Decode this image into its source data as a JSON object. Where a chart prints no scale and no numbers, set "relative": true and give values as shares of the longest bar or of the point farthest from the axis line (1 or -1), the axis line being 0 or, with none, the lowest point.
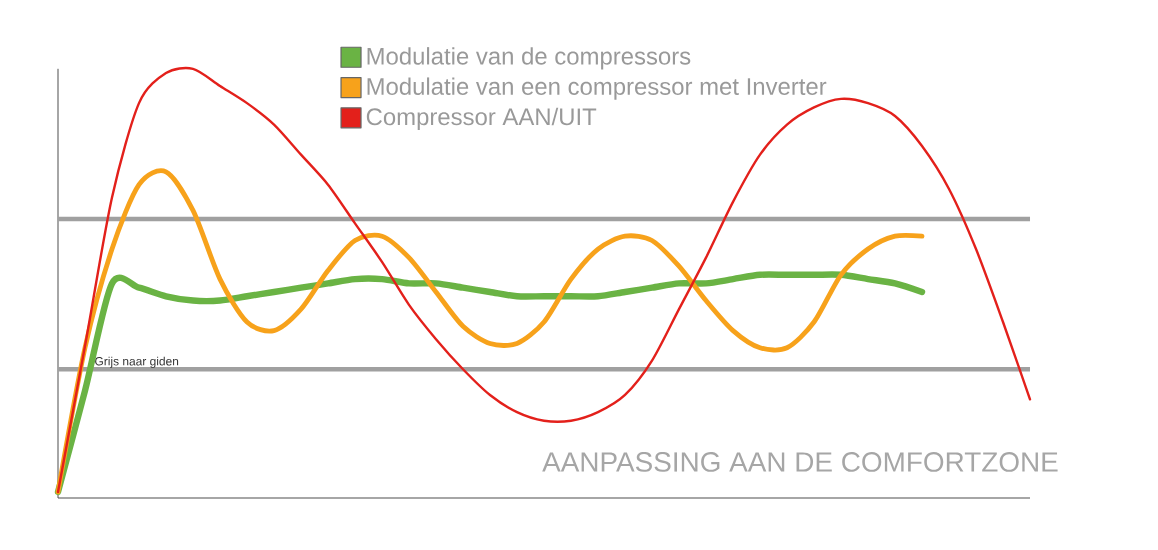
{
  "chart_data": {
    "type": "line",
    "relative": true,
    "legend": "top",
    "categories": [
      null,
      null,
      null,
      null,
      null,
      null,
      null,
      null,
      null,
      null,
      null,
      null,
      null,
      null,
      null,
      null,
      null,
      null,
      null,
      null,
      null,
      null,
      null,
      null,
      null,
      null,
      null,
      null,
      null,
      null,
      null,
      null,
      null,
      null,
      null,
      null,
      null
    ],
    "series": [
      {
        "name": "Modulatie van de compressors",
        "color": "#6ab344",
        "values": [
          0.014,
          0.25,
          0.5,
          0.49,
          0.47,
          0.46,
          0.46,
          0.47,
          0.48,
          0.49,
          0.5,
          0.51,
          0.51,
          0.5,
          0.5,
          0.49,
          0.48,
          0.47,
          0.47,
          0.47,
          0.47,
          0.48,
          0.49,
          0.5,
          0.5,
          0.51,
          0.52,
          0.52,
          0.52,
          0.52,
          0.51,
          0.5,
          0.48,
          null,
          null,
          null,
          null
        ]
      },
      {
        "name": "Modulatie van een compressor met Inverter",
        "color": "#f7a21b",
        "values": [
          0.014,
          0.35,
          0.58,
          0.73,
          0.76,
          0.67,
          0.51,
          0.41,
          0.39,
          0.44,
          0.53,
          0.6,
          0.61,
          0.56,
          0.48,
          0.4,
          0.36,
          0.36,
          0.41,
          0.51,
          0.58,
          0.61,
          0.6,
          0.54,
          0.46,
          0.39,
          0.35,
          0.35,
          0.41,
          0.52,
          0.58,
          0.61,
          0.61,
          null,
          null,
          null,
          null
        ]
      },
      {
        "name": "Compressor AAN/UIT",
        "color": "#e3201b",
        "values": [
          0.014,
          0.354,
          0.7,
          0.92,
          0.99,
          1.0,
          0.96,
          0.92,
          0.87,
          0.8,
          0.73,
          0.64,
          0.55,
          0.45,
          0.37,
          0.3,
          0.24,
          0.2,
          0.18,
          0.18,
          0.2,
          0.24,
          0.32,
          0.44,
          0.56,
          0.69,
          0.8,
          0.87,
          0.91,
          0.93,
          0.92,
          0.89,
          0.82,
          0.72,
          0.58,
          0.41,
          0.23
        ]
      }
    ],
    "ref_lines": [
      {
        "axis": "y",
        "value": 0.65,
        "label": null,
        "color": "#a0a0a0"
      },
      {
        "axis": "y",
        "value": 0.3,
        "label": "Grijs naar giden",
        "color": "#a0a0a0"
      }
    ],
    "annotations": [
      "AANPASSING AAN DE COMFORTZONE"
    ]
  }
}
